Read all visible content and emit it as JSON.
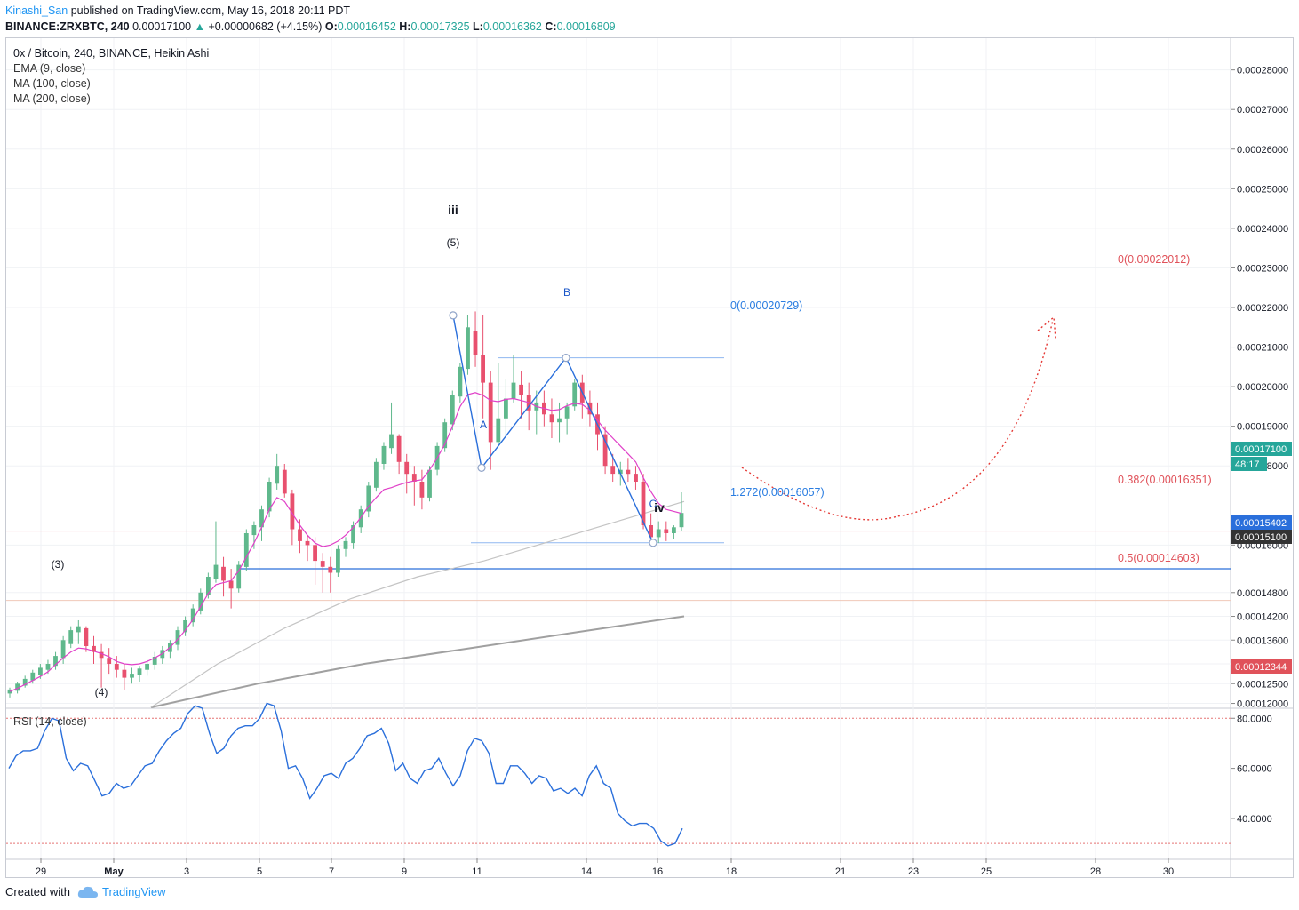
{
  "header": {
    "user": "Kinashi_San",
    "published": "published on TradingView.com, May 16, 2018 20:11 PDT"
  },
  "info": {
    "symbol": "BINANCE:ZRXBTC, 240",
    "last": "0.00017100",
    "change_arrow": "▲",
    "change": "+0.00000682 (+4.15%)",
    "o_label": "O:",
    "o": "0.00016452",
    "h_label": "H:",
    "h": "0.00017325",
    "l_label": "L:",
    "l": "0.00016362",
    "c_label": "C:",
    "c": "0.00016809"
  },
  "legend": {
    "title": "0x / Bitcoin, 240, BINANCE, Heikin Ashi",
    "ema": "EMA (9, close)",
    "ma100": "MA (100, close)",
    "ma200": "MA (200, close)",
    "rsi": "RSI (14, close)"
  },
  "footer": {
    "created": "Created with",
    "brand": "TradingView"
  },
  "colors": {
    "up": "#26a69a",
    "up_fill": "#5fb88c",
    "down": "#e8506e",
    "ema": "#e040c8",
    "ma100": "#c4c4c4",
    "ma200": "#a0a0a0",
    "pattern": "#2a6fdb",
    "fib": "#e0525a",
    "rsi": "#2a6fdb",
    "support": "#2a6fdb"
  },
  "chart_data": {
    "type": "candlestick",
    "y_axis": {
      "min": 0.000119,
      "max": 0.000288,
      "ticks": [
        "0.00028000",
        "0.00027000",
        "0.00026000",
        "0.00025000",
        "0.00024000",
        "0.00023000",
        "0.00022000",
        "0.00021000",
        "0.00020000",
        "0.00019000",
        "0.00018000",
        "0.00016000",
        "0.00014800",
        "0.00014200",
        "0.00013600",
        "0.00013000",
        "0.00012500",
        "0.00012000"
      ]
    },
    "x_axis": {
      "labels": [
        "29",
        "May",
        "3",
        "5",
        "7",
        "9",
        "11",
        "14",
        "16",
        "18",
        "21",
        "23",
        "25",
        "28",
        "30"
      ]
    },
    "candles_ohlc_approx": [
      [
        0.0001225,
        0.000124,
        0.0001215,
        0.0001235
      ],
      [
        0.0001232,
        0.0001255,
        0.0001225,
        0.000125
      ],
      [
        0.0001245,
        0.000127,
        0.000124,
        0.0001262
      ],
      [
        0.0001258,
        0.0001285,
        0.000125,
        0.0001278
      ],
      [
        0.0001272,
        0.00013,
        0.0001262,
        0.000129
      ],
      [
        0.0001285,
        0.000131,
        0.0001275,
        0.00013
      ],
      [
        0.0001295,
        0.000133,
        0.0001285,
        0.000132
      ],
      [
        0.0001315,
        0.000137,
        0.00013,
        0.000136
      ],
      [
        0.000135,
        0.0001395,
        0.000134,
        0.0001385
      ],
      [
        0.000138,
        0.000141,
        0.000135,
        0.0001395
      ],
      [
        0.000139,
        0.0001395,
        0.000133,
        0.0001345
      ],
      [
        0.0001345,
        0.000137,
        0.00013,
        0.000133
      ],
      [
        0.000133,
        0.000135,
        0.000124,
        0.0001315
      ],
      [
        0.0001315,
        0.000134,
        0.0001275,
        0.00013
      ],
      [
        0.00013,
        0.000132,
        0.0001265,
        0.0001285
      ],
      [
        0.0001285,
        0.00013,
        0.0001235,
        0.0001265
      ],
      [
        0.0001265,
        0.000129,
        0.000125,
        0.0001275
      ],
      [
        0.0001272,
        0.0001295,
        0.0001255,
        0.0001288
      ],
      [
        0.0001285,
        0.000131,
        0.000127,
        0.00013
      ],
      [
        0.0001298,
        0.000133,
        0.0001285,
        0.0001318
      ],
      [
        0.0001315,
        0.0001345,
        0.00013,
        0.0001335
      ],
      [
        0.000133,
        0.000136,
        0.0001315,
        0.0001352
      ],
      [
        0.0001348,
        0.0001395,
        0.0001335,
        0.0001385
      ],
      [
        0.000138,
        0.000142,
        0.000137,
        0.000141
      ],
      [
        0.0001405,
        0.000145,
        0.0001395,
        0.000144
      ],
      [
        0.0001435,
        0.000149,
        0.0001425,
        0.000148
      ],
      [
        0.0001475,
        0.000153,
        0.0001465,
        0.000152
      ],
      [
        0.0001515,
        0.000166,
        0.0001505,
        0.000155
      ],
      [
        0.0001545,
        0.000157,
        0.000147,
        0.000151
      ],
      [
        0.000151,
        0.000154,
        0.000144,
        0.000149
      ],
      [
        0.000149,
        0.000156,
        0.000148,
        0.000155
      ],
      [
        0.0001545,
        0.000164,
        0.0001535,
        0.000163
      ],
      [
        0.0001625,
        0.000166,
        0.000159,
        0.000165
      ],
      [
        0.0001645,
        0.00017,
        0.000161,
        0.000169
      ],
      [
        0.0001685,
        0.000177,
        0.000167,
        0.000176
      ],
      [
        0.0001755,
        0.000183,
        0.000174,
        0.00018
      ],
      [
        0.000179,
        0.0001805,
        0.000172,
        0.000173
      ],
      [
        0.000173,
        0.000174,
        0.00016,
        0.000164
      ],
      [
        0.000164,
        0.0001665,
        0.000158,
        0.000161
      ],
      [
        0.000161,
        0.0001625,
        0.000156,
        0.00016
      ],
      [
        0.00016,
        0.000162,
        0.00015,
        0.000156
      ],
      [
        0.000156,
        0.000158,
        0.000148,
        0.0001545
      ],
      [
        0.0001545,
        0.000157,
        0.000148,
        0.000153
      ],
      [
        0.000153,
        0.00016,
        0.000152,
        0.000159
      ],
      [
        0.000159,
        0.000162,
        0.000157,
        0.000161
      ],
      [
        0.0001605,
        0.000166,
        0.000159,
        0.000165
      ],
      [
        0.0001645,
        0.00017,
        0.000163,
        0.000169
      ],
      [
        0.0001685,
        0.000176,
        0.000167,
        0.000175
      ],
      [
        0.0001745,
        0.000182,
        0.0001735,
        0.000181
      ],
      [
        0.0001805,
        0.000186,
        0.000179,
        0.000185
      ],
      [
        0.0001845,
        0.000196,
        0.000183,
        0.000188
      ],
      [
        0.0001875,
        0.000188,
        0.000178,
        0.000181
      ],
      [
        0.000181,
        0.000183,
        0.000173,
        0.000178
      ],
      [
        0.000178,
        0.00018,
        0.00017,
        0.000176
      ],
      [
        0.000176,
        0.000179,
        0.000169,
        0.000172
      ],
      [
        0.000172,
        0.00018,
        0.000171,
        0.000179
      ],
      [
        0.000179,
        0.000186,
        0.0001775,
        0.000185
      ],
      [
        0.0001845,
        0.000192,
        0.0001835,
        0.000191
      ],
      [
        0.0001905,
        0.000199,
        0.000189,
        0.000198
      ],
      [
        0.0001975,
        0.000206,
        0.000196,
        0.000205
      ],
      [
        0.0002045,
        0.000218,
        0.000203,
        0.000215
      ],
      [
        0.000214,
        0.000219,
        0.000205,
        0.000208
      ],
      [
        0.000208,
        0.000218,
        0.000192,
        0.000201
      ],
      [
        0.000201,
        0.000204,
        0.000179,
        0.000186
      ],
      [
        0.000186,
        0.000206,
        0.000185,
        0.000192
      ],
      [
        0.000192,
        0.000202,
        0.000187,
        0.000197
      ],
      [
        0.000197,
        0.000208,
        0.000196,
        0.000201
      ],
      [
        0.0002005,
        0.000204,
        0.000192,
        0.000198
      ],
      [
        0.000198,
        0.000201,
        0.000189,
        0.000194
      ],
      [
        0.000194,
        0.000199,
        0.000188,
        0.000196
      ],
      [
        0.000196,
        0.000199,
        0.00019,
        0.000193
      ],
      [
        0.000193,
        0.000197,
        0.000187,
        0.000191
      ],
      [
        0.000191,
        0.000196,
        0.000186,
        0.000192
      ],
      [
        0.000192,
        0.000196,
        0.000188,
        0.000195
      ],
      [
        0.000195,
        0.000202,
        0.000194,
        0.000201
      ],
      [
        0.000201,
        0.000203,
        0.000192,
        0.000196
      ],
      [
        0.000196,
        0.000199,
        0.00019,
        0.000193
      ],
      [
        0.000193,
        0.000196,
        0.000184,
        0.000188
      ],
      [
        0.000188,
        0.00019,
        0.000178,
        0.00018
      ],
      [
        0.00018,
        0.000183,
        0.000176,
        0.000178
      ],
      [
        0.000178,
        0.000181,
        0.000175,
        0.000179
      ],
      [
        0.000179,
        0.000182,
        0.000176,
        0.000178
      ],
      [
        0.000178,
        0.00018,
        0.000174,
        0.000176
      ],
      [
        0.000176,
        0.000178,
        0.000164,
        0.000165
      ],
      [
        0.000165,
        0.000168,
        0.00016,
        0.000162
      ],
      [
        0.000162,
        0.000166,
        0.0001605,
        0.000164
      ],
      [
        0.000164,
        0.000166,
        0.000161,
        0.000163
      ],
      [
        0.000163,
        0.000165,
        0.0001615,
        0.0001645
      ],
      [
        0.0001645,
        0.0001733,
        0.0001636,
        0.0001681
      ]
    ],
    "ema9_approx": [
      0.000123,
      0.0001238,
      0.0001248,
      0.0001258,
      0.0001268,
      0.000128,
      0.0001298,
      0.0001315,
      0.000133,
      0.000134,
      0.0001338,
      0.0001332,
      0.0001326,
      0.0001318,
      0.0001306,
      0.00013,
      0.0001298,
      0.00013,
      0.0001306,
      0.0001315,
      0.0001326,
      0.0001342,
      0.0001362,
      0.0001385,
      0.0001412,
      0.0001445,
      0.0001478,
      0.00015,
      0.0001505,
      0.000151,
      0.0001535,
      0.000157,
      0.0001605,
      0.0001645,
      0.000169,
      0.000172,
      0.000171,
      0.000168,
      0.000165,
      0.0001625,
      0.0001605,
      0.0001596,
      0.00016,
      0.000161,
      0.0001625,
      0.0001645,
      0.000167,
      0.0001698,
      0.000172,
      0.000174,
      0.0001745,
      0.0001752,
      0.0001758,
      0.0001762,
      0.0001765,
      0.000179,
      0.000182,
      0.0001855,
      0.00019,
      0.000195,
      0.000198,
      0.0001985,
      0.0001978,
      0.0001965,
      0.0001962,
      0.0001968,
      0.000197,
      0.0001965,
      0.000196,
      0.000195,
      0.0001945,
      0.000194,
      0.0001942,
      0.0001952,
      0.0001958,
      0.0001955,
      0.000194,
      0.0001915,
      0.000189,
      0.000187,
      0.000185,
      0.000183,
      0.000181,
      0.000177,
      0.0001735,
      0.0001705,
      0.000169,
      0.0001685,
      0.000168
    ],
    "ma100_approx": [
      [
        0.000119,
        0.000119
      ],
      [
        0.00013,
        0.00013
      ],
      [
        0.000139,
        0.000139
      ],
      [
        0.0001465,
        0.0001465
      ],
      [
        0.000152,
        0.000152
      ],
      [
        0.000156,
        0.000156
      ],
      [
        0.000161,
        0.000161
      ],
      [
        0.000166,
        0.000166
      ],
      [
        0.000171,
        0.000171
      ]
    ],
    "ma200_approx": [
      0.000119,
      0.000125,
      0.00013,
      0.000134,
      0.000138,
      0.000142
    ],
    "annotations": {
      "wave_labels": [
        "(3)",
        "(4)",
        "(5)",
        "iii",
        "iv"
      ],
      "abc_labels": [
        "A",
        "B",
        "C"
      ],
      "fib_levels_left": [
        "0(0.00020729)",
        "1.272(0.00016057)"
      ],
      "fib_levels_right": [
        "0(0.00022012)",
        "0.382(0.00016351)",
        "0.5(0.00014603)"
      ],
      "price_tags": [
        {
          "label": "0.00017100",
          "color": "#26a69a",
          "value": 0.000171
        },
        {
          "label": "48:17",
          "color": "#26a69a"
        },
        {
          "label": "0.00015402",
          "color": "#2a6fdb",
          "value": 0.00015402
        },
        {
          "label": "0.00015100",
          "color": "#333333",
          "value": 0.000151
        },
        {
          "label": "0.00012344",
          "color": "#e0525a",
          "value": 0.00012344
        }
      ]
    },
    "rsi": {
      "ticks": [
        "80.0000",
        "60.0000",
        "40.0000"
      ],
      "overbought": 80,
      "oversold": 30,
      "min": 24,
      "max": 84,
      "values_approx": [
        60,
        65,
        67,
        67,
        68,
        75,
        80,
        79,
        64,
        59,
        62,
        61,
        55,
        49,
        50,
        54,
        52,
        53,
        57,
        61,
        62,
        67,
        71,
        74,
        76,
        82,
        85,
        84,
        74,
        66,
        68,
        73,
        76,
        77,
        77,
        80,
        86,
        85,
        75,
        60,
        61,
        56,
        48,
        52,
        57,
        58,
        56,
        62,
        64,
        68,
        73,
        74,
        76,
        70,
        59,
        62,
        56,
        54,
        59,
        60,
        64,
        58,
        53,
        57,
        67,
        72,
        71,
        66,
        54,
        54,
        61,
        61,
        58,
        54,
        57,
        56,
        51,
        52,
        50,
        52,
        49,
        57,
        61,
        54,
        52,
        42,
        39,
        37,
        38,
        38,
        36,
        31,
        29,
        30,
        36
      ]
    }
  }
}
